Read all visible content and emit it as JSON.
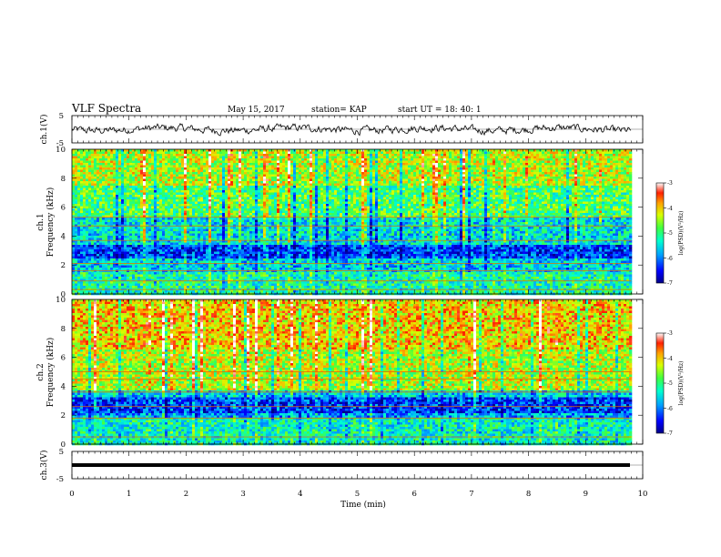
{
  "header": {
    "title": "VLF Spectra",
    "date": "May 15, 2017",
    "station": "station= KAP",
    "start": "start  UT  =   18: 40: 1"
  },
  "chart_data": [
    {
      "type": "line",
      "panel": "ch1-waveform",
      "ylabel": "ch.1(V)",
      "ylim": [
        -5,
        5
      ],
      "ytick_labels": [
        "5",
        "-5"
      ],
      "xlim": [
        0,
        10
      ],
      "data_extent_min": [
        0,
        9.8
      ],
      "typical_range_v": [
        -1.5,
        1.5
      ]
    },
    {
      "type": "heatmap",
      "panel": "ch1-spectrogram",
      "ylabel": "ch.1\nFrequency (kHz)",
      "ylim": [
        0,
        10
      ],
      "ytick_labels": [
        "0",
        "2",
        "4",
        "6",
        "8",
        "10"
      ],
      "xlim": [
        0,
        10
      ],
      "colorbar": {
        "label": "log(PSD)(V²/Hz)",
        "range": [
          -7,
          -3
        ],
        "tick_labels": [
          "-3",
          "-4",
          "-5",
          "-6",
          "-7"
        ],
        "colors": [
          "#000088",
          "#0000ff",
          "#00a0ff",
          "#00ffd0",
          "#40ff40",
          "#d8ff00",
          "#ffa000",
          "#ff2000",
          "#ffffff"
        ]
      },
      "bands_khz": [
        {
          "from": 0,
          "to": 1.5,
          "log_psd": -5.2
        },
        {
          "from": 1.5,
          "to": 2.5,
          "log_psd": -5.6
        },
        {
          "from": 2.5,
          "to": 3.4,
          "log_psd": -6.3
        },
        {
          "from": 3.4,
          "to": 5.3,
          "log_psd": -5.5
        },
        {
          "from": 5.3,
          "to": 7.5,
          "log_psd": -4.9
        },
        {
          "from": 7.5,
          "to": 10,
          "log_psd": -4.4
        }
      ],
      "lines_khz": [
        0.3,
        0.9,
        1.6,
        2.1,
        3.7,
        4.7,
        5.3
      ]
    },
    {
      "type": "heatmap",
      "panel": "ch2-spectrogram",
      "ylabel": "ch.2\nFrequency (kHz)",
      "ylim": [
        0,
        10
      ],
      "ytick_labels": [
        "0",
        "2",
        "4",
        "6",
        "8",
        "10"
      ],
      "xlim": [
        0,
        10
      ],
      "colorbar": {
        "label": "log(PSD)(V²/Hz)",
        "range": [
          -7,
          -3
        ],
        "tick_labels": [
          "-3",
          "-4",
          "-5",
          "-6",
          "-7"
        ],
        "colors": [
          "#000088",
          "#0000ff",
          "#00a0ff",
          "#00ffd0",
          "#40ff40",
          "#d8ff00",
          "#ffa000",
          "#ff2000",
          "#ffffff"
        ]
      },
      "bands_khz": [
        {
          "from": 0,
          "to": 1.8,
          "log_psd": -5.3
        },
        {
          "from": 1.8,
          "to": 2.2,
          "log_psd": -5.8
        },
        {
          "from": 2.2,
          "to": 3.2,
          "log_psd": -6.3
        },
        {
          "from": 3.2,
          "to": 3.7,
          "log_psd": -5.6
        },
        {
          "from": 3.7,
          "to": 6.5,
          "log_psd": -4.4
        },
        {
          "from": 6.5,
          "to": 10,
          "log_psd": -4.0
        }
      ],
      "lines_khz": [
        0.5,
        1.8,
        2.6,
        3.6,
        4.5,
        5.0
      ]
    },
    {
      "type": "line",
      "panel": "ch3-waveform",
      "ylabel": "ch.3(V)",
      "ylim": [
        -5,
        5
      ],
      "ytick_labels": [
        "5",
        "-5"
      ],
      "xlim": [
        0,
        10
      ],
      "xlabel": "Time  (min)",
      "xtick_labels": [
        "0",
        "1",
        "2",
        "3",
        "4",
        "5",
        "6",
        "7",
        "8",
        "9",
        "10"
      ],
      "data_extent_min": [
        0,
        9.8
      ],
      "constant_value_v": 0
    }
  ]
}
